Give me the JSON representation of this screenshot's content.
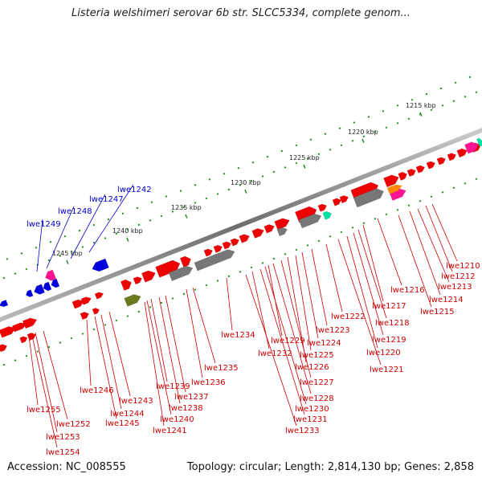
{
  "title": "Listeria welshimeri serovar 6b str. SLCC5334, complete genom...",
  "footer": {
    "accession": "Accession: NC_008555",
    "topology": "Topology: circular; Length: 2,814,130 bp; Genes: 2,858"
  },
  "colors": {
    "forward_gene": "#ee0000",
    "reverse_gene": "#0000dd",
    "pseudo_gene": "#777777",
    "rrna": "#ff1493",
    "trna": "#00e0a0",
    "ncrna": "#ff8800",
    "other_gene": "#6b7a1e",
    "label_forward": "#cc0000",
    "label_reverse": "#0000cc",
    "tick": "#228b22",
    "backbone": "#888888"
  },
  "scale_ticks": [
    {
      "label": "1215 kbp"
    },
    {
      "label": "1220 kbp"
    },
    {
      "label": "1225 kbp"
    },
    {
      "label": "1230 kbp"
    },
    {
      "label": "1235 kbp"
    },
    {
      "label": "1240 kbp"
    },
    {
      "label": "1245 kbp"
    }
  ],
  "reverse_labels": [
    "lwe1242",
    "lwe1247",
    "lwe1248",
    "lwe1249"
  ],
  "forward_labels": [
    "lwe1210",
    "lwe1212",
    "lwe1213",
    "lwe1214",
    "lwe1215",
    "lwe1216",
    "lwe1217",
    "lwe1218",
    "lwe1219",
    "lwe1220",
    "lwe1221",
    "lwe1222",
    "lwe1223",
    "lwe1224",
    "lwe1225",
    "lwe1226",
    "lwe1227",
    "lwe1228",
    "lwe1229",
    "lwe1230",
    "lwe1231",
    "lwe1232",
    "lwe1233",
    "lwe1234",
    "lwe1235",
    "lwe1236",
    "lwe1237",
    "lwe1238",
    "lwe1239",
    "lwe1240",
    "lwe1241",
    "lwe1243",
    "lwe1244",
    "lwe1245",
    "lwe1246",
    "lwe1252",
    "lwe1253",
    "lwe1254",
    "lwe1255"
  ]
}
